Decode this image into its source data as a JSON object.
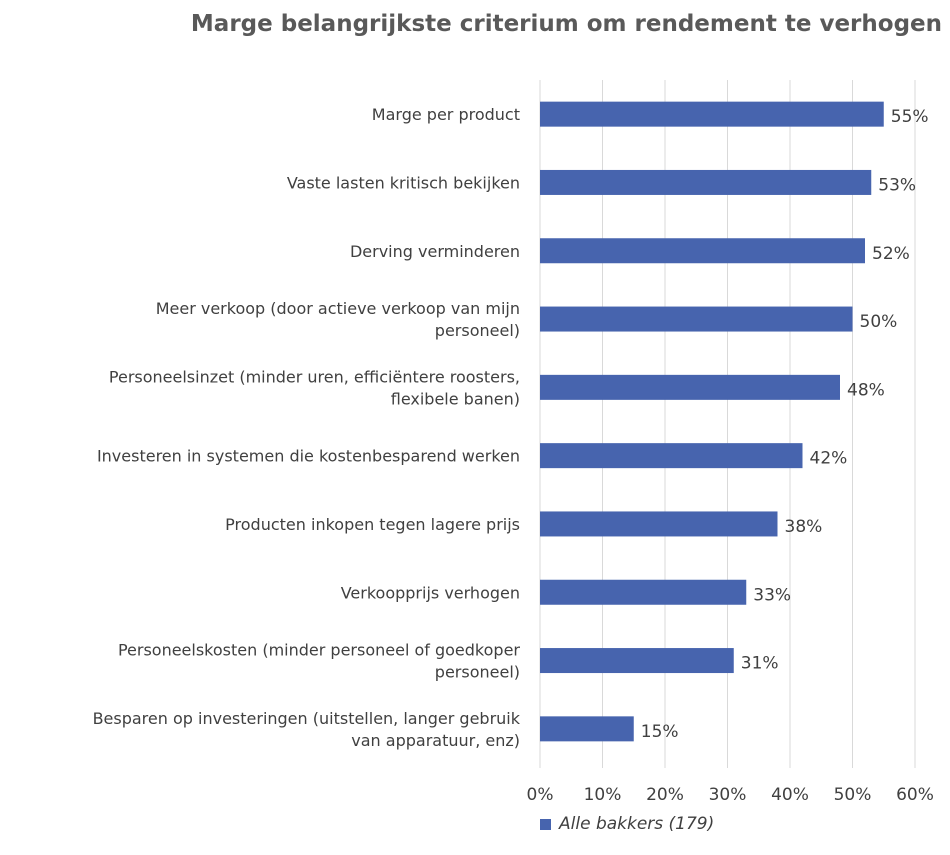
{
  "chart_data": {
    "type": "bar",
    "orientation": "horizontal",
    "title": "Marge belangrijkste criterium om rendement te verhogen",
    "categories": [
      [
        "Marge per product"
      ],
      [
        "Vaste lasten kritisch bekijken"
      ],
      [
        "Derving verminderen"
      ],
      [
        "Meer verkoop (door actieve verkoop van mijn",
        "personeel)"
      ],
      [
        "Personeelsinzet (minder uren, efficiëntere roosters,",
        "flexibele banen)"
      ],
      [
        "Investeren in systemen die kostenbesparend werken"
      ],
      [
        "Producten inkopen tegen lagere prijs"
      ],
      [
        "Verkoopprijs verhogen"
      ],
      [
        "Personeelskosten (minder personeel of goedkoper",
        "personeel)"
      ],
      [
        "Besparen op investeringen (uitstellen, langer gebruik",
        "van apparatuur, enz)"
      ]
    ],
    "series": [
      {
        "name": "Alle bakkers (179)",
        "values": [
          55,
          53,
          52,
          50,
          48,
          42,
          38,
          33,
          31,
          15
        ],
        "labels": [
          "55%",
          "53%",
          "52%",
          "50%",
          "48%",
          "42%",
          "38%",
          "33%",
          "31%",
          "15%"
        ]
      }
    ],
    "xlim": [
      0,
      60
    ],
    "ticks": [
      "0%",
      "10%",
      "20%",
      "30%",
      "40%",
      "50%",
      "60%"
    ],
    "grid": true,
    "legend_position": "bottom",
    "colors": {
      "bar": "#4764ae",
      "grid": "#d9d9d9"
    }
  }
}
